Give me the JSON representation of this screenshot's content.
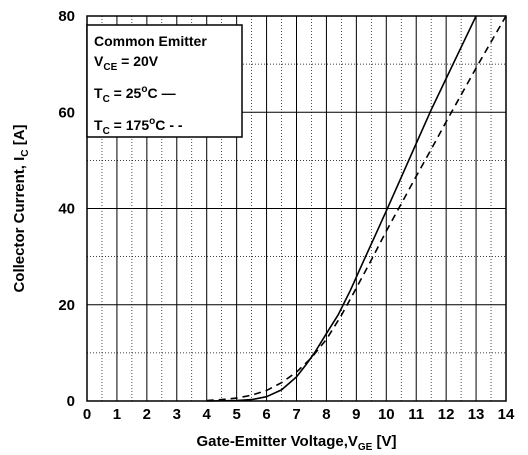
{
  "chart_data": {
    "type": "line",
    "title": "",
    "xlabel": "Gate-Emitter Voltage,V",
    "xlabel_sub": "GE",
    "xlabel_unit": " [V]",
    "ylabel": "Collector Current, I",
    "ylabel_sub": "C",
    "ylabel_unit": " [A]",
    "xlim": [
      0,
      14
    ],
    "ylim": [
      0,
      80
    ],
    "x_ticks": [
      "0",
      "1",
      "2",
      "3",
      "4",
      "5",
      "6",
      "7",
      "8",
      "9",
      "10",
      "11",
      "12",
      "13",
      "14"
    ],
    "y_ticks": [
      "0",
      "20",
      "40",
      "60",
      "80"
    ],
    "grid": true,
    "legend": {
      "placement": "top-left",
      "title": "Common Emitter",
      "condition": {
        "main": "V",
        "sub": "CE",
        "rest": " = 20V"
      },
      "entries": [
        {
          "main": "T",
          "sub": "C",
          "rest": " = 25",
          "sup": "o",
          "unit": "C",
          "style": "solid",
          "marker": "—"
        },
        {
          "main": "T",
          "sub": "C",
          "rest": " = 175",
          "sup": "o",
          "unit": "C",
          "style": "dashed",
          "marker": "- -"
        }
      ]
    },
    "series": [
      {
        "style": "solid",
        "x": [
          4.0,
          5.0,
          5.5,
          6.0,
          6.5,
          7.0,
          7.3,
          7.6,
          8.0,
          8.4,
          8.8,
          9.2,
          9.6,
          10.0,
          10.5,
          11.0,
          11.5,
          12.0,
          12.5,
          13.0
        ],
        "y": [
          0,
          0.1,
          0.3,
          0.9,
          2.3,
          5.0,
          7.4,
          10.0,
          14.0,
          18.0,
          23.0,
          28.5,
          34.0,
          39.5,
          46.5,
          53.5,
          60.5,
          67.0,
          73.5,
          80.0
        ]
      },
      {
        "style": "dashed",
        "x": [
          4.0,
          4.5,
          5.0,
          5.5,
          6.0,
          6.5,
          7.0,
          7.5,
          8.0,
          8.5,
          9.0,
          9.5,
          10.0,
          10.5,
          11.0,
          11.5,
          12.0,
          12.5,
          13.0,
          13.5,
          14.0
        ],
        "y": [
          0.1,
          0.3,
          0.6,
          1.2,
          2.2,
          3.8,
          6.0,
          9.0,
          12.8,
          17.8,
          23.5,
          29.3,
          35.3,
          41.0,
          46.7,
          52.3,
          58.0,
          63.6,
          69.2,
          74.6,
          80.0
        ]
      }
    ]
  }
}
